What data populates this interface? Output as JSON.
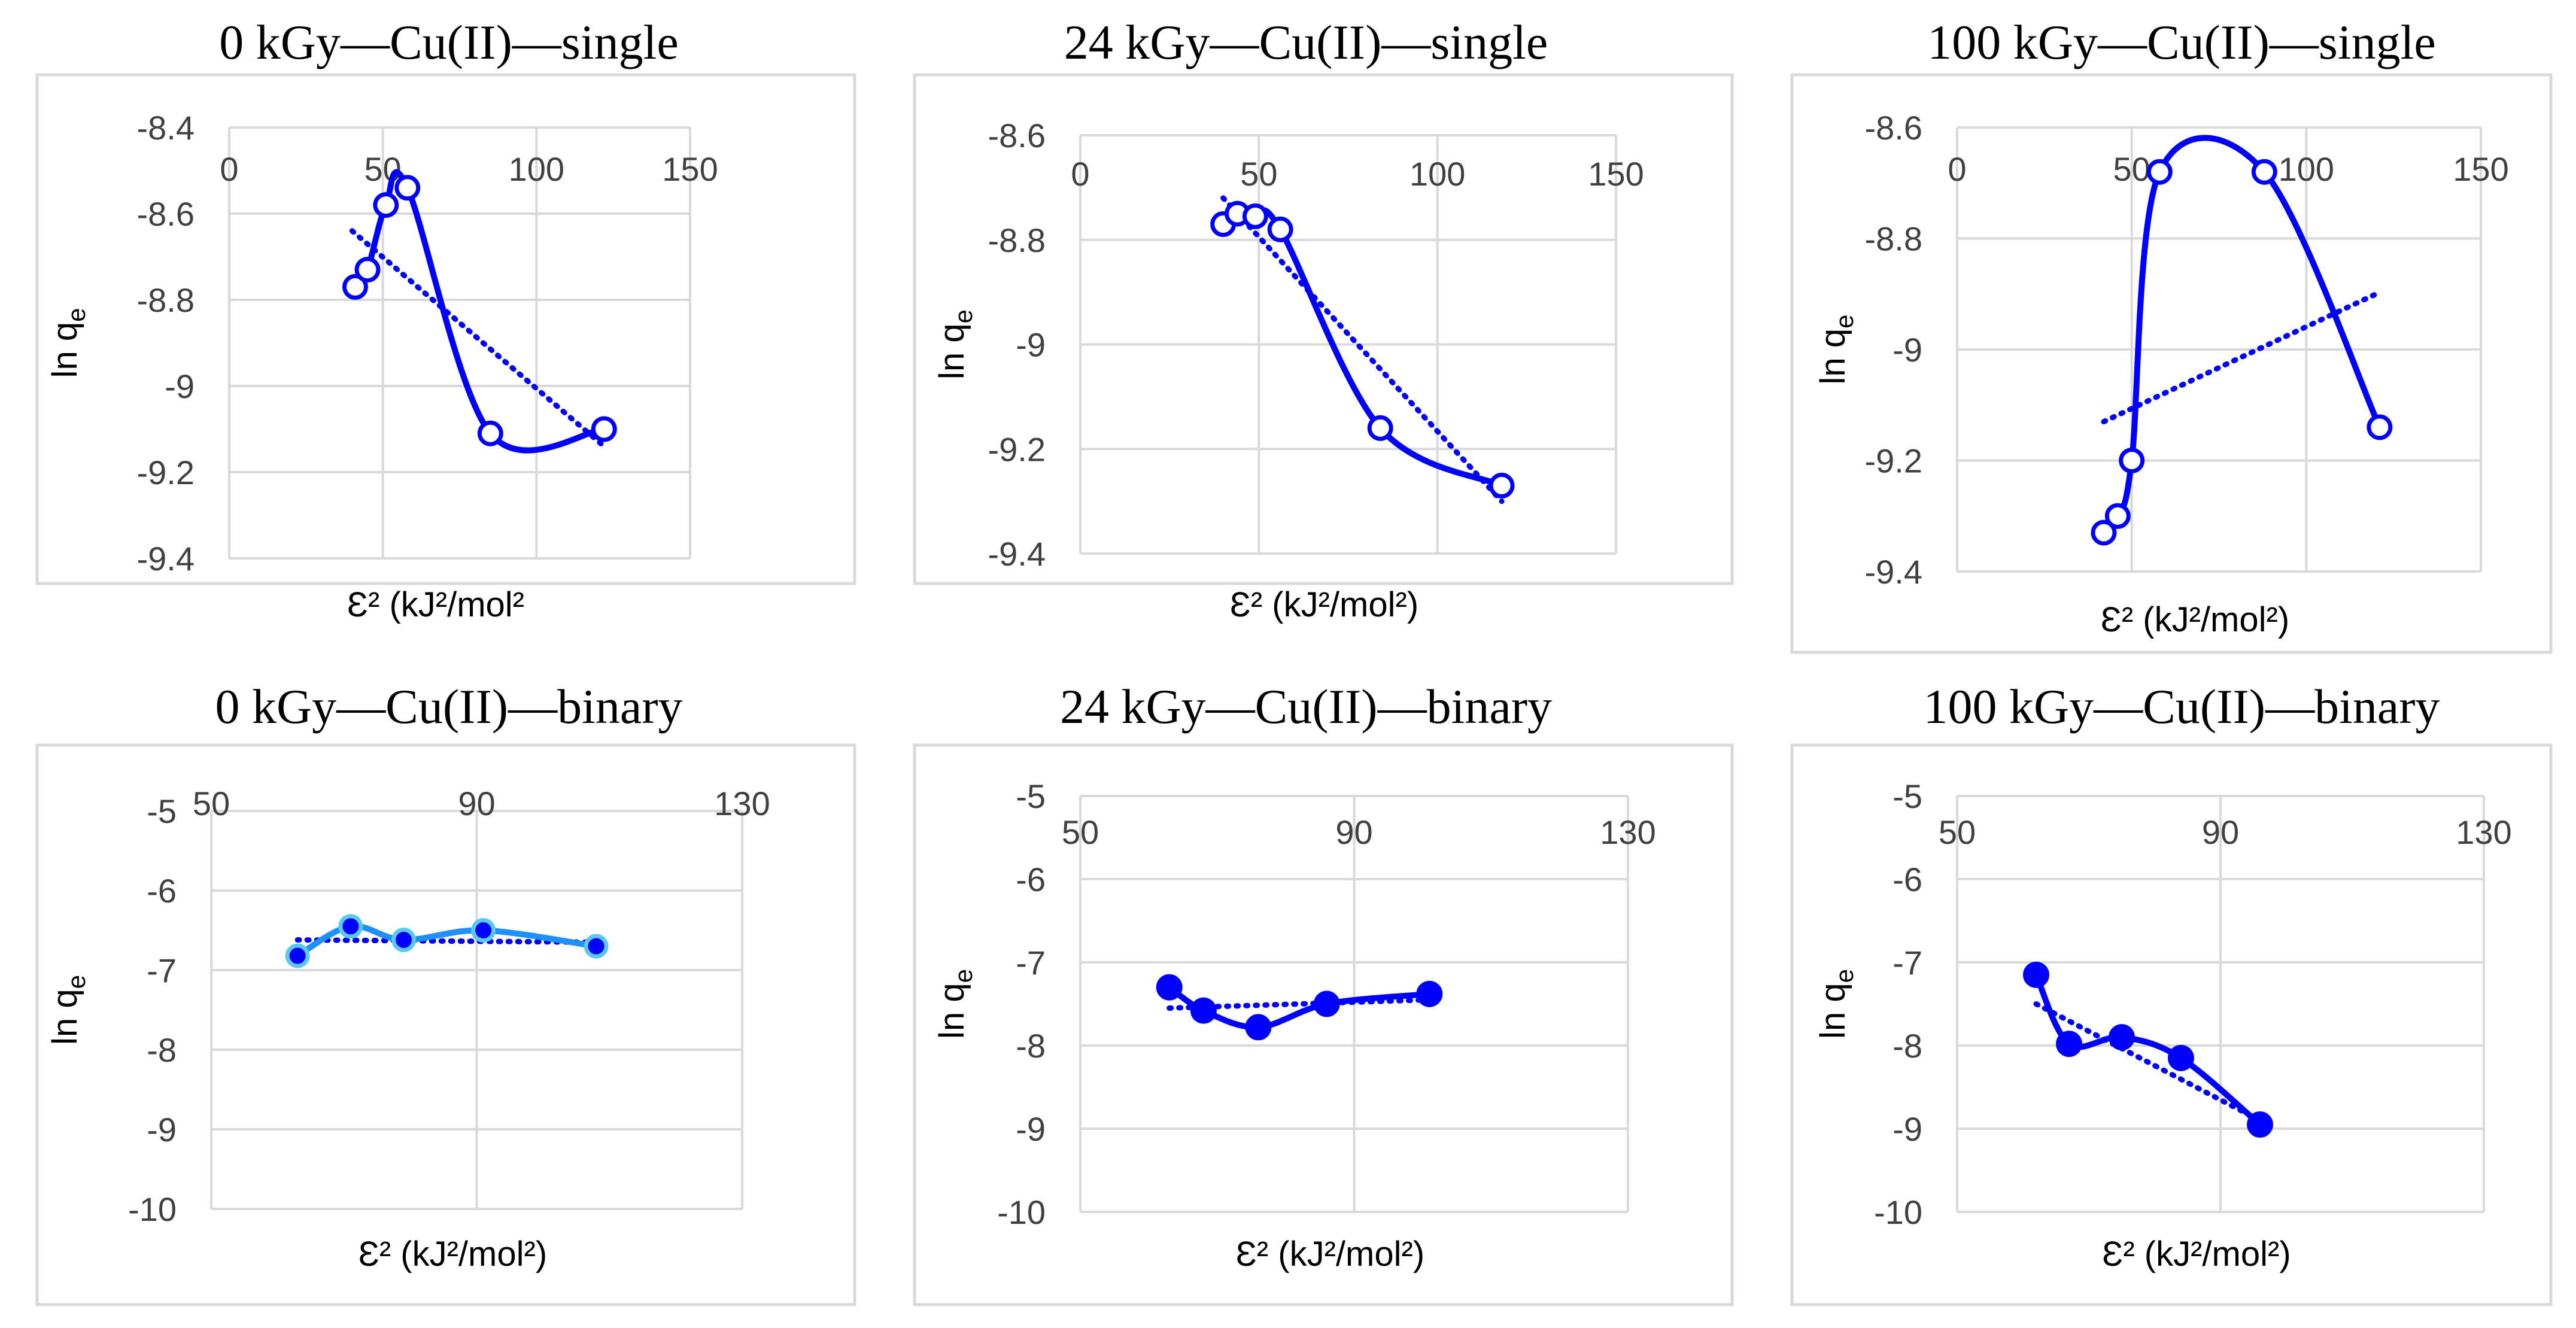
{
  "chart_data": [
    {
      "type": "scatter",
      "title": "0 kGy—Cu(II)—single",
      "xlabel": "Ɛ² (kJ²/mol²",
      "ylabel": "ln q",
      "ylabel_sub": "e",
      "xlim": [
        0,
        150
      ],
      "ylim": [
        -9.4,
        -8.4
      ],
      "x_ticks": [
        0,
        50,
        100,
        150
      ],
      "y_ticks": [
        -8.4,
        -8.6,
        -8.8,
        -9.0,
        -9.2,
        -9.4
      ],
      "x_tick_labels": [
        "0",
        "50",
        "100",
        "150"
      ],
      "y_tick_labels": [
        "-8.4",
        "-8.6",
        "-8.8",
        "-9",
        "-9.2",
        "-9.4"
      ],
      "marker": "open",
      "series": [
        {
          "name": "data",
          "x": [
            41,
            45,
            51,
            58,
            85,
            122
          ],
          "y": [
            -8.77,
            -8.73,
            -8.58,
            -8.54,
            -9.11,
            -9.1
          ]
        }
      ],
      "trendline": {
        "style": "dotted",
        "x": [
          40,
          122
        ],
        "y": [
          -8.64,
          -9.14
        ]
      }
    },
    {
      "type": "scatter",
      "title": "24 kGy—Cu(II)—single",
      "xlabel": "Ɛ² (kJ²/mol²)",
      "ylabel": "ln q",
      "ylabel_sub": "e",
      "xlim": [
        0,
        150
      ],
      "ylim": [
        -9.4,
        -8.6
      ],
      "x_ticks": [
        0,
        50,
        100,
        150
      ],
      "y_ticks": [
        -8.6,
        -8.8,
        -9.0,
        -9.2,
        -9.4
      ],
      "x_tick_labels": [
        "0",
        "50",
        "100",
        "150"
      ],
      "y_tick_labels": [
        "-8.6",
        "-8.8",
        "-9",
        "-9.2",
        "-9.4"
      ],
      "marker": "open",
      "series": [
        {
          "name": "data",
          "x": [
            40,
            44,
            49,
            56,
            84,
            118
          ],
          "y": [
            -8.77,
            -8.75,
            -8.755,
            -8.78,
            -9.16,
            -9.27
          ]
        }
      ],
      "trendline": {
        "style": "dotted",
        "x": [
          40,
          118
        ],
        "y": [
          -8.72,
          -9.3
        ]
      }
    },
    {
      "type": "scatter",
      "title": "100 kGy—Cu(II)—single",
      "xlabel": "Ɛ² (kJ²/mol²)",
      "ylabel": "ln q",
      "ylabel_sub": "e",
      "xlim": [
        0,
        150
      ],
      "ylim": [
        -9.4,
        -8.6
      ],
      "x_ticks": [
        0,
        50,
        100,
        150
      ],
      "y_ticks": [
        -8.6,
        -8.8,
        -9.0,
        -9.2,
        -9.4
      ],
      "x_tick_labels": [
        "0",
        "50",
        "100",
        "150"
      ],
      "y_tick_labels": [
        "-8.6",
        "-8.8",
        "-9",
        "-9.2",
        "-9.4"
      ],
      "marker": "open",
      "series": [
        {
          "name": "data",
          "x": [
            42,
            46,
            50,
            58,
            88,
            121
          ],
          "y": [
            -9.33,
            -9.3,
            -9.2,
            -8.68,
            -8.68,
            -9.14
          ]
        }
      ],
      "trendline": {
        "style": "dotted",
        "x": [
          42,
          120
        ],
        "y": [
          -9.13,
          -8.9
        ]
      }
    },
    {
      "type": "scatter",
      "title": "0 kGy—Cu(II)—binary",
      "xlabel": "Ɛ² (kJ²/mol²)",
      "ylabel": "ln q",
      "ylabel_sub": "e",
      "xlim": [
        50,
        130
      ],
      "ylim": [
        -10,
        -5
      ],
      "x_ticks": [
        50,
        90,
        130
      ],
      "y_ticks": [
        -5,
        -6,
        -7,
        -8,
        -9,
        -10
      ],
      "x_tick_labels": [
        "50",
        "90",
        "130"
      ],
      "y_tick_labels": [
        "-5",
        "-6",
        "-7",
        "-8",
        "-9",
        "-10"
      ],
      "marker": "filled-light",
      "series": [
        {
          "name": "data",
          "x": [
            63,
            71,
            79,
            91,
            108
          ],
          "y": [
            -6.82,
            -6.45,
            -6.62,
            -6.5,
            -6.7
          ]
        }
      ],
      "trendline": {
        "style": "dotted",
        "x": [
          63,
          108
        ],
        "y": [
          -6.62,
          -6.65
        ]
      }
    },
    {
      "type": "scatter",
      "title": "24 kGy—Cu(II)—binary",
      "xlabel": "Ɛ² (kJ²/mol²)",
      "ylabel": "ln q",
      "ylabel_sub": "e",
      "xlim": [
        50,
        130
      ],
      "ylim": [
        -10,
        -5
      ],
      "x_ticks": [
        50,
        90,
        130
      ],
      "y_ticks": [
        -5,
        -6,
        -7,
        -8,
        -9,
        -10
      ],
      "x_tick_labels": [
        "50",
        "90",
        "130"
      ],
      "y_tick_labels": [
        "-5",
        "-6",
        "-7",
        "-8",
        "-9",
        "-10"
      ],
      "marker": "filled",
      "series": [
        {
          "name": "data",
          "x": [
            63,
            68,
            76,
            86,
            101
          ],
          "y": [
            -7.3,
            -7.58,
            -7.78,
            -7.5,
            -7.38
          ]
        }
      ],
      "trendline": {
        "style": "dotted",
        "x": [
          63,
          101
        ],
        "y": [
          -7.55,
          -7.45
        ]
      }
    },
    {
      "type": "scatter",
      "title": "100 kGy—Cu(II)—binary",
      "xlabel": "Ɛ² (kJ²/mol²)",
      "ylabel": "ln q",
      "ylabel_sub": "e",
      "xlim": [
        50,
        130
      ],
      "ylim": [
        -10,
        -5
      ],
      "x_ticks": [
        50,
        90,
        130
      ],
      "y_ticks": [
        -5,
        -6,
        -7,
        -8,
        -9,
        -10
      ],
      "x_tick_labels": [
        "50",
        "90",
        "130"
      ],
      "y_tick_labels": [
        "-5",
        "-6",
        "-7",
        "-8",
        "-9",
        "-10"
      ],
      "marker": "filled",
      "series": [
        {
          "name": "data",
          "x": [
            62,
            67,
            75,
            84,
            96
          ],
          "y": [
            -7.15,
            -7.98,
            -7.9,
            -8.15,
            -8.95
          ]
        }
      ],
      "trendline": {
        "style": "dotted",
        "x": [
          62,
          96
        ],
        "y": [
          -7.5,
          -8.9
        ]
      }
    }
  ],
  "colors": {
    "series": "#0000ff",
    "light_fill": "#1e90ff",
    "light_edge": "#5bc8f0",
    "grid": "#d9d9d9",
    "tick_text": "#404040",
    "frame": "#d9d9d9"
  }
}
